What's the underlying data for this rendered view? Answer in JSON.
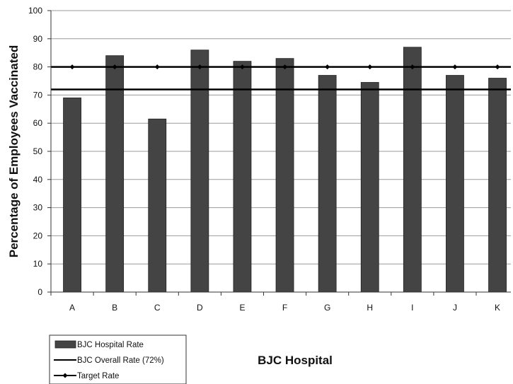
{
  "chart_data": {
    "type": "bar",
    "title": "",
    "xlabel": "BJC Hospital",
    "ylabel": "Percentage of Employees Vaccinated",
    "categories": [
      "A",
      "B",
      "C",
      "D",
      "E",
      "F",
      "G",
      "H",
      "I",
      "J",
      "K"
    ],
    "series": [
      {
        "name": "BJC Hospital Rate",
        "type": "bar",
        "color": "#444444",
        "values": [
          69,
          84,
          61.5,
          86,
          82,
          83,
          77,
          74.5,
          87,
          77,
          76
        ]
      },
      {
        "name": "BJC Overall Rate (72%)",
        "type": "line",
        "color": "#000000",
        "value": 72
      },
      {
        "name": "Target Rate",
        "type": "line-with-markers",
        "color": "#000000",
        "value": 80
      }
    ],
    "ylim": [
      0,
      100
    ],
    "yticks": [
      0,
      10,
      20,
      30,
      40,
      50,
      60,
      70,
      80,
      90,
      100
    ],
    "grid": true,
    "legend_position": "bottom-left"
  }
}
